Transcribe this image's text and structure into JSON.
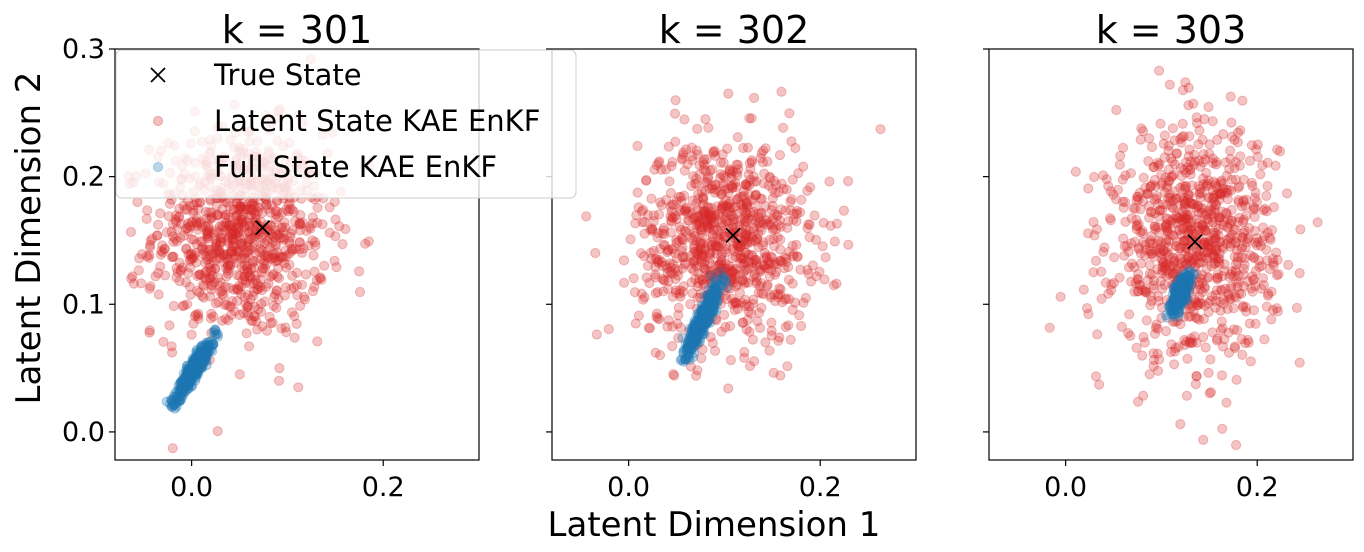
{
  "figure": {
    "xlabel": "Latent Dimension 1",
    "ylabel": "Latent Dimension 2",
    "legend": {
      "placement": "upper-left of first panel",
      "entries": [
        {
          "label": "True State",
          "marker": "x",
          "color": "#000000"
        },
        {
          "label": "Latent State KAE EnKF",
          "marker": "circle",
          "color": "#d62728",
          "alpha": 0.3
        },
        {
          "label": "Full State KAE EnKF",
          "marker": "circle",
          "color": "#1f77b4",
          "alpha": 0.3
        }
      ]
    }
  },
  "chart_data": [
    {
      "type": "scatter",
      "title": "k = 301",
      "xlim": [
        -0.08,
        0.3
      ],
      "ylim": [
        -0.022,
        0.3
      ],
      "xticks": [
        0.0,
        0.2
      ],
      "xtick_labels": [
        "0.0",
        "0.2"
      ],
      "yticks": [
        0.0,
        0.1,
        0.2,
        0.3
      ],
      "ytick_labels": [
        "0.0",
        "0.1",
        "0.2",
        "0.3"
      ],
      "show_yticklabels": true,
      "grid": false,
      "true_state": {
        "x": 0.074,
        "y": 0.16
      },
      "latent_ensemble": {
        "n": 900,
        "mean": [
          0.05,
          0.155
        ],
        "std": [
          0.045,
          0.04
        ],
        "corr": 0.0
      },
      "full_ensemble": {
        "n": 400,
        "x_range": [
          -0.02,
          0.025
        ],
        "y_range": [
          0.02,
          0.078
        ]
      }
    },
    {
      "type": "scatter",
      "title": "k = 302",
      "xlim": [
        -0.08,
        0.3
      ],
      "ylim": [
        -0.022,
        0.3
      ],
      "xticks": [
        0.0,
        0.2
      ],
      "xtick_labels": [
        "0.0",
        "0.2"
      ],
      "yticks": [
        0.0,
        0.1,
        0.2,
        0.3
      ],
      "ytick_labels": [
        "0.0",
        "0.1",
        "0.2",
        "0.3"
      ],
      "show_yticklabels": false,
      "grid": false,
      "true_state": {
        "x": 0.109,
        "y": 0.154
      },
      "latent_ensemble": {
        "n": 900,
        "mean": [
          0.1,
          0.15
        ],
        "std": [
          0.045,
          0.04
        ],
        "corr": 0.0
      },
      "full_ensemble": {
        "n": 400,
        "x_range": [
          0.057,
          0.097
        ],
        "y_range": [
          0.055,
          0.122
        ]
      }
    },
    {
      "type": "scatter",
      "title": "k = 303",
      "xlim": [
        -0.08,
        0.3
      ],
      "ylim": [
        -0.022,
        0.3
      ],
      "xticks": [
        0.0,
        0.2
      ],
      "xtick_labels": [
        "0.0",
        "0.2"
      ],
      "yticks": [
        0.0,
        0.1,
        0.2,
        0.3
      ],
      "ytick_labels": [
        "0.0",
        "0.1",
        "0.2",
        "0.3"
      ],
      "show_yticklabels": false,
      "grid": false,
      "true_state": {
        "x": 0.135,
        "y": 0.149
      },
      "latent_ensemble": {
        "n": 900,
        "mean": [
          0.135,
          0.148
        ],
        "std": [
          0.042,
          0.045
        ],
        "corr": 0.0
      },
      "full_ensemble": {
        "n": 350,
        "x_range": [
          0.112,
          0.128
        ],
        "y_range": [
          0.092,
          0.125
        ]
      }
    }
  ]
}
